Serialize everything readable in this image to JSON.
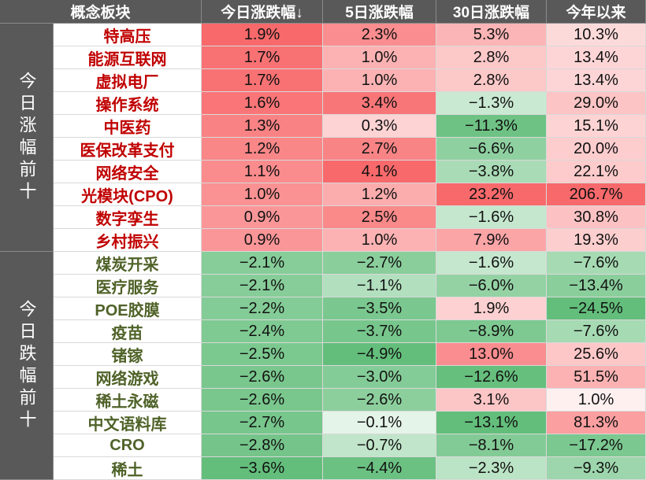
{
  "table": {
    "header": [
      "概念板块",
      "今日涨跌幅↓",
      "5日涨跌幅",
      "30日涨跌幅",
      "今年以来"
    ],
    "groups": [
      {
        "label": "今日涨幅前十",
        "rows": [
          {
            "name": "特高压",
            "cells": [
              "1.9%",
              "2.3%",
              "5.3%",
              "10.3%"
            ]
          },
          {
            "name": "能源互联网",
            "cells": [
              "1.7%",
              "1.0%",
              "2.8%",
              "13.4%"
            ]
          },
          {
            "name": "虚拟电厂",
            "cells": [
              "1.7%",
              "1.0%",
              "2.8%",
              "13.4%"
            ]
          },
          {
            "name": "操作系统",
            "cells": [
              "1.6%",
              "3.4%",
              "−1.3%",
              "29.0%"
            ]
          },
          {
            "name": "中医药",
            "cells": [
              "1.3%",
              "0.3%",
              "−11.3%",
              "15.1%"
            ]
          },
          {
            "name": "医保改革支付",
            "cells": [
              "1.2%",
              "2.7%",
              "−6.6%",
              "20.0%"
            ]
          },
          {
            "name": "网络安全",
            "cells": [
              "1.1%",
              "4.1%",
              "−3.8%",
              "22.1%"
            ]
          },
          {
            "name": "光模块(CPO)",
            "cells": [
              "1.0%",
              "1.2%",
              "23.2%",
              "206.7%"
            ]
          },
          {
            "name": "数字孪生",
            "cells": [
              "0.9%",
              "2.5%",
              "−1.6%",
              "30.8%"
            ]
          },
          {
            "name": "乡村振兴",
            "cells": [
              "0.9%",
              "1.0%",
              "7.9%",
              "19.3%"
            ]
          }
        ]
      },
      {
        "label": "今日跌幅前十",
        "rows": [
          {
            "name": "煤炭开采",
            "cells": [
              "−2.1%",
              "−2.7%",
              "−1.6%",
              "−7.6%"
            ]
          },
          {
            "name": "医疗服务",
            "cells": [
              "−2.1%",
              "−1.1%",
              "−6.0%",
              "−13.4%"
            ]
          },
          {
            "name": "POE胶膜",
            "cells": [
              "−2.2%",
              "−3.5%",
              "1.9%",
              "−24.5%"
            ]
          },
          {
            "name": "疫苗",
            "cells": [
              "−2.4%",
              "−3.7%",
              "−8.9%",
              "−7.6%"
            ]
          },
          {
            "name": "锗镓",
            "cells": [
              "−2.5%",
              "−4.9%",
              "13.0%",
              "25.6%"
            ]
          },
          {
            "name": "网络游戏",
            "cells": [
              "−2.6%",
              "−3.0%",
              "−12.6%",
              "51.5%"
            ]
          },
          {
            "name": "稀土永磁",
            "cells": [
              "−2.6%",
              "−2.6%",
              "3.1%",
              "1.0%"
            ]
          },
          {
            "name": "中文语料库",
            "cells": [
              "−2.7%",
              "−0.1%",
              "−13.1%",
              "81.3%"
            ]
          },
          {
            "name": "CRO",
            "cells": [
              "−2.8%",
              "−0.7%",
              "−8.1%",
              "−17.2%"
            ]
          },
          {
            "name": "稀土",
            "cells": [
              "−3.6%",
              "−4.4%",
              "−2.3%",
              "−9.3%"
            ]
          }
        ]
      }
    ]
  }
}
